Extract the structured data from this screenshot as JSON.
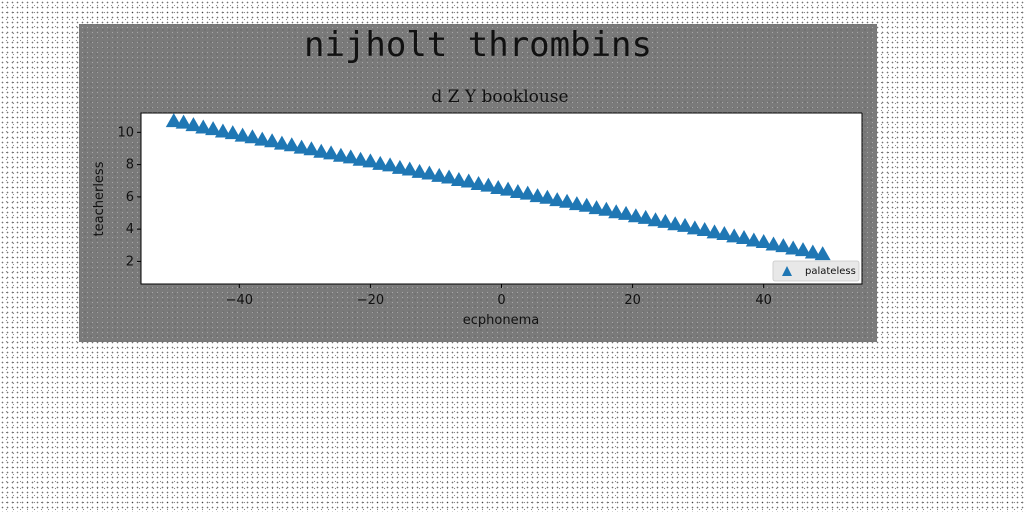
{
  "chart_data": {
    "type": "scatter",
    "title": "nijholt thrombins",
    "subtitle": "d Z Y booklouse",
    "xlabel": "ecphonema",
    "ylabel": "teacherless",
    "xlim": [
      -55,
      55
    ],
    "ylim": [
      0.6,
      11.2
    ],
    "xticks": [
      -40,
      -20,
      0,
      20,
      40
    ],
    "xtick_labels": [
      "−40",
      "−20",
      "0",
      "20",
      "40"
    ],
    "yticks": [
      2,
      4,
      6,
      8,
      10
    ],
    "ytick_labels": [
      "2",
      "4",
      "6",
      "8",
      "10"
    ],
    "grid": false,
    "legend": {
      "position": "lower-right",
      "entries": [
        "palateless"
      ]
    },
    "series": [
      {
        "name": "palateless",
        "marker": "triangle-up",
        "color": "#1f77b4",
        "x": [
          -50,
          -48.5,
          -47,
          -45.5,
          -44,
          -42.5,
          -41,
          -39.5,
          -38,
          -36.5,
          -35,
          -33.5,
          -32,
          -30.5,
          -29,
          -27.5,
          -26,
          -24.5,
          -23,
          -21.5,
          -20,
          -18.5,
          -17,
          -15.5,
          -14,
          -12.5,
          -11,
          -9.5,
          -8,
          -6.5,
          -5,
          -3.5,
          -2,
          -0.5,
          1,
          2.5,
          4,
          5.5,
          7,
          8.5,
          10,
          11.5,
          13,
          14.5,
          16,
          17.5,
          19,
          20.5,
          22,
          23.5,
          25,
          26.5,
          28,
          29.5,
          31,
          32.5,
          34,
          35.5,
          37,
          38.5,
          40,
          41.5,
          43,
          44.5,
          46,
          47.5,
          49
        ],
        "y": [
          10.7,
          10.6,
          10.45,
          10.3,
          10.2,
          10.05,
          9.95,
          9.8,
          9.7,
          9.55,
          9.45,
          9.3,
          9.2,
          9.05,
          8.95,
          8.8,
          8.7,
          8.55,
          8.45,
          8.3,
          8.2,
          8.05,
          7.95,
          7.8,
          7.7,
          7.55,
          7.45,
          7.3,
          7.2,
          7.05,
          6.95,
          6.8,
          6.7,
          6.55,
          6.45,
          6.3,
          6.2,
          6.05,
          5.95,
          5.8,
          5.7,
          5.55,
          5.45,
          5.3,
          5.2,
          5.05,
          4.95,
          4.8,
          4.7,
          4.55,
          4.45,
          4.3,
          4.2,
          4.05,
          3.95,
          3.8,
          3.7,
          3.55,
          3.45,
          3.3,
          3.2,
          3.05,
          2.95,
          2.8,
          2.7,
          2.55,
          2.45
        ]
      }
    ]
  }
}
